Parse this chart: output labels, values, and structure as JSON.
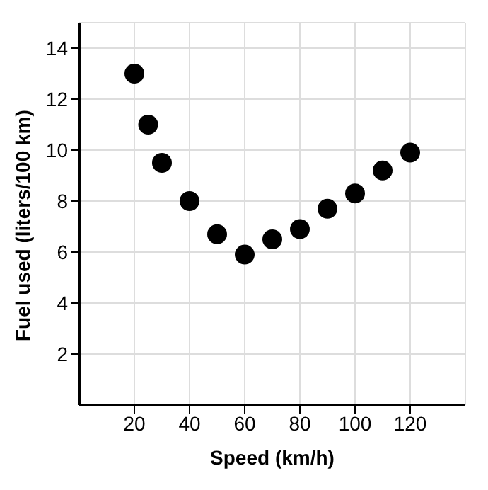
{
  "chart_data": {
    "type": "scatter",
    "xlabel": "Speed (km/h)",
    "ylabel": "Fuel used (liters/100 km)",
    "x": [
      20,
      25,
      30,
      40,
      50,
      60,
      70,
      80,
      90,
      100,
      110,
      120
    ],
    "values": [
      13,
      11,
      9.5,
      8,
      6.7,
      5.9,
      6.5,
      6.9,
      7.7,
      8.3,
      9.2,
      9.9
    ],
    "color": "#000000",
    "marker": "circle",
    "xlim": [
      0,
      140
    ],
    "xticks": [
      20,
      40,
      60,
      80,
      100,
      120
    ],
    "ylim": [
      0,
      15
    ],
    "yticks": [
      2,
      4,
      6,
      8,
      10,
      12,
      14
    ],
    "grid": true
  }
}
